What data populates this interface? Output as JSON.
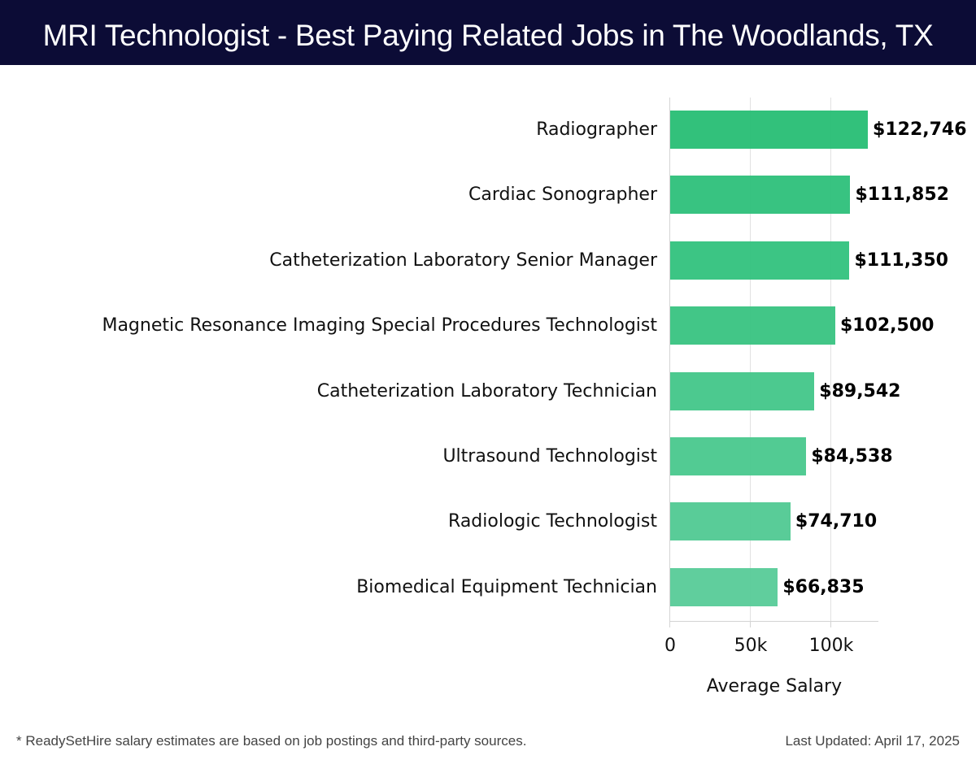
{
  "header": {
    "title": "MRI Technologist - Best Paying Related Jobs in The Woodlands, TX"
  },
  "chart_data": {
    "type": "bar",
    "orientation": "horizontal",
    "title": "MRI Technologist - Best Paying Related Jobs in The Woodlands, TX",
    "xlabel": "Average Salary",
    "ylabel": "",
    "xlim": [
      0,
      130000
    ],
    "grid": true,
    "legend": null,
    "x_ticks": [
      {
        "value": 0,
        "label": "0"
      },
      {
        "value": 50000,
        "label": "50k"
      },
      {
        "value": 100000,
        "label": "100k"
      }
    ],
    "categories": [
      "Radiographer",
      "Cardiac Sonographer",
      "Catheterization Laboratory Senior Manager",
      "Magnetic Resonance Imaging Special Procedures Technologist",
      "Catheterization Laboratory Technician",
      "Ultrasound Technologist",
      "Radiologic Technologist",
      "Biomedical Equipment Technician"
    ],
    "values": [
      122746,
      111852,
      111350,
      102500,
      89542,
      84538,
      74710,
      66835
    ],
    "value_labels": [
      "$122,746",
      "$111,852",
      "$111,350",
      "$102,500",
      "$89,542",
      "$84,538",
      "$74,710",
      "$66,835"
    ],
    "bar_colors": [
      "#27be74",
      "#2dc07a",
      "#32c27d",
      "#38c381",
      "#42c689",
      "#49c88d",
      "#50c992",
      "#57cb98"
    ]
  },
  "footer": {
    "note": "* ReadySetHire salary estimates are based on job postings and third-party sources.",
    "updated": "Last Updated: April 17, 2025"
  }
}
